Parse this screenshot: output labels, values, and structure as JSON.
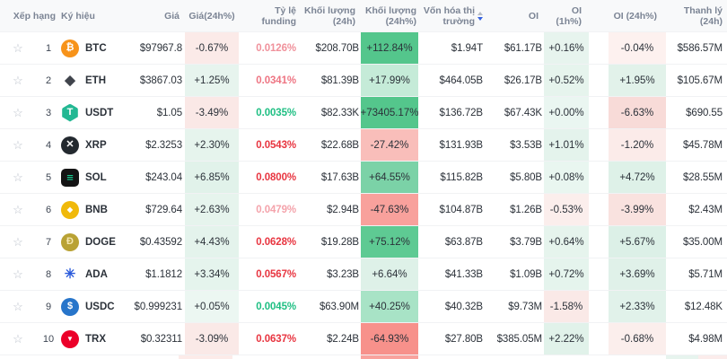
{
  "header": {
    "columns": [
      "Xếp hạng",
      "Ký hiệu",
      "Giá",
      "Giá(24h%)",
      "Tỷ lệ funding",
      "Khối lượng (24h)",
      "Khối lượng (24h%)",
      "Vốn hóa thị trường",
      "OI",
      "OI (1h%)",
      "OI (24h%)",
      "Thanh lý (24h)"
    ],
    "sort_active_color": "#3461e0"
  },
  "icons": {
    "BTC": {
      "shape": "circle",
      "bg": "#f7931a",
      "fg": "#ffffff",
      "glyph": "₿",
      "name": "btc-coin-icon"
    },
    "ETH": {
      "shape": "bare",
      "bg": "",
      "fg": "#40444c",
      "glyph": "◆",
      "name": "eth-coin-icon"
    },
    "USDT": {
      "shape": "hex",
      "bg": "#23b893",
      "fg": "#ffffff",
      "glyph": "T",
      "name": "usdt-coin-icon"
    },
    "XRP": {
      "shape": "circle",
      "bg": "#23292f",
      "fg": "#ffffff",
      "glyph": "✕",
      "name": "xrp-coin-icon"
    },
    "SOL": {
      "shape": "square",
      "bg": "#141414",
      "fg": "#16e4a0",
      "glyph": "≡",
      "name": "sol-coin-icon"
    },
    "BNB": {
      "shape": "circle tri",
      "bg": "#f0b90b",
      "fg": "#ffffff",
      "glyph": "◆",
      "name": "bnb-coin-icon"
    },
    "DOGE": {
      "shape": "circle",
      "bg": "#b9a234",
      "fg": "#f5e7b0",
      "glyph": "Ð",
      "name": "doge-coin-icon"
    },
    "ADA": {
      "shape": "bare",
      "bg": "",
      "fg": "#2a5ada",
      "glyph": "✳",
      "name": "ada-coin-icon"
    },
    "USDC": {
      "shape": "circle",
      "bg": "#2775ca",
      "fg": "#ffffff",
      "glyph": "$",
      "name": "usdc-coin-icon"
    },
    "TRX": {
      "shape": "circle tri",
      "bg": "#eb0029",
      "fg": "#ffffff",
      "glyph": "▼",
      "name": "trx-coin-icon"
    }
  },
  "rows": [
    {
      "rank": "1",
      "symbol": "BTC",
      "price": "$97967.8",
      "chg24": "-0.67%",
      "chg24_bg": "#fbeae8",
      "funding": "0.0126%",
      "funding_color": "#f0919b",
      "volume": "$208.70B",
      "volpct": "+112.84%",
      "volpct_bg": "#54c68c",
      "mcap": "$1.94T",
      "oi": "$61.17B",
      "oi1h": "+0.16%",
      "oi1h_bg": "#e7f4ee",
      "oi24h": "-0.04%",
      "oi24h_bg": "#fdf1ef",
      "liq": "$586.57M"
    },
    {
      "rank": "2",
      "symbol": "ETH",
      "price": "$3867.03",
      "chg24": "+1.25%",
      "chg24_bg": "#e7f4ee",
      "funding": "0.0341%",
      "funding_color": "#ee7583",
      "volume": "$81.39B",
      "volpct": "+17.99%",
      "volpct_bg": "#c5ebd8",
      "mcap": "$464.05B",
      "oi": "$26.17B",
      "oi1h": "+0.52%",
      "oi1h_bg": "#e6f4ed",
      "oi24h": "+1.95%",
      "oi24h_bg": "#e2f2ea",
      "liq": "$105.67M"
    },
    {
      "rank": "3",
      "symbol": "USDT",
      "price": "$1.05",
      "chg24": "-3.49%",
      "chg24_bg": "#fae8e6",
      "funding": "0.0035%",
      "funding_color": "#1fbf83",
      "volume": "$82.33K",
      "volpct": "+73405.17%",
      "volpct_bg": "#54c68c",
      "mcap": "$136.72B",
      "oi": "$67.43K",
      "oi1h": "+0.00%",
      "oi1h_bg": "#eaf6f1",
      "oi24h": "-6.63%",
      "oi24h_bg": "#f8dbd8",
      "liq": "$690.55"
    },
    {
      "rank": "4",
      "symbol": "XRP",
      "price": "$2.3253",
      "chg24": "+2.30%",
      "chg24_bg": "#e6f4ed",
      "funding": "0.0543%",
      "funding_color": "#e83540",
      "volume": "$22.68B",
      "volpct": "-27.42%",
      "volpct_bg": "#f9beba",
      "mcap": "$131.93B",
      "oi": "$3.53B",
      "oi1h": "+1.01%",
      "oi1h_bg": "#e4f3ec",
      "oi24h": "-1.20%",
      "oi24h_bg": "#fbebe9",
      "liq": "$45.78M"
    },
    {
      "rank": "5",
      "symbol": "SOL",
      "price": "$243.04",
      "chg24": "+6.85%",
      "chg24_bg": "#e1f2ea",
      "funding": "0.0800%",
      "funding_color": "#e83540",
      "volume": "$17.63B",
      "volpct": "+64.55%",
      "volpct_bg": "#7bd2a7",
      "mcap": "$115.82B",
      "oi": "$5.80B",
      "oi1h": "+0.08%",
      "oi1h_bg": "#e9f6f0",
      "oi24h": "+4.72%",
      "oi24h_bg": "#def1e8",
      "liq": "$28.55M"
    },
    {
      "rank": "6",
      "symbol": "BNB",
      "price": "$729.64",
      "chg24": "+2.63%",
      "chg24_bg": "#e6f4ed",
      "funding": "0.0479%",
      "funding_color": "#f4a3ab",
      "volume": "$2.94B",
      "volpct": "-47.63%",
      "volpct_bg": "#f8a19c",
      "mcap": "$104.87B",
      "oi": "$1.26B",
      "oi1h": "-0.53%",
      "oi1h_bg": "#fbeeec",
      "oi24h": "-3.99%",
      "oi24h_bg": "#f9e2df",
      "liq": "$2.43M"
    },
    {
      "rank": "7",
      "symbol": "DOGE",
      "price": "$0.43592",
      "chg24": "+4.43%",
      "chg24_bg": "#e4f3ec",
      "funding": "0.0628%",
      "funding_color": "#e83540",
      "volume": "$19.28B",
      "volpct": "+75.12%",
      "volpct_bg": "#5eca93",
      "mcap": "$63.87B",
      "oi": "$3.79B",
      "oi1h": "+0.64%",
      "oi1h_bg": "#e6f4ed",
      "oi24h": "+5.67%",
      "oi24h_bg": "#dcf0e7",
      "liq": "$35.00M"
    },
    {
      "rank": "8",
      "symbol": "ADA",
      "price": "$1.1812",
      "chg24": "+3.34%",
      "chg24_bg": "#e5f4ed",
      "funding": "0.0567%",
      "funding_color": "#e83540",
      "volume": "$3.23B",
      "volpct": "+6.64%",
      "volpct_bg": "#def1e8",
      "mcap": "$41.33B",
      "oi": "$1.09B",
      "oi1h": "+0.72%",
      "oi1h_bg": "#e5f4ed",
      "oi24h": "+3.69%",
      "oi24h_bg": "#e0f1e9",
      "liq": "$5.71M"
    },
    {
      "rank": "9",
      "symbol": "USDC",
      "price": "$0.999231",
      "chg24": "+0.05%",
      "chg24_bg": "#ecf7f2",
      "funding": "0.0045%",
      "funding_color": "#1fbf83",
      "volume": "$63.90M",
      "volpct": "+40.25%",
      "volpct_bg": "#a8e3c6",
      "mcap": "$40.32B",
      "oi": "$9.73M",
      "oi1h": "-1.58%",
      "oi1h_bg": "#fae9e7",
      "oi24h": "+2.33%",
      "oi24h_bg": "#e1f2ea",
      "liq": "$12.48K"
    },
    {
      "rank": "10",
      "symbol": "TRX",
      "price": "$0.32311",
      "chg24": "-3.09%",
      "chg24_bg": "#fae9e7",
      "funding": "0.0637%",
      "funding_color": "#e83540",
      "volume": "$2.24B",
      "volpct": "-64.93%",
      "volpct_bg": "#f7918b",
      "mcap": "$27.80B",
      "oi": "$385.05M",
      "oi1h": "+2.22%",
      "oi1h_bg": "#e1f2ea",
      "oi24h": "-0.68%",
      "oi24h_bg": "#fbeeec",
      "liq": "$4.98M"
    }
  ],
  "star_glyph": "☆"
}
